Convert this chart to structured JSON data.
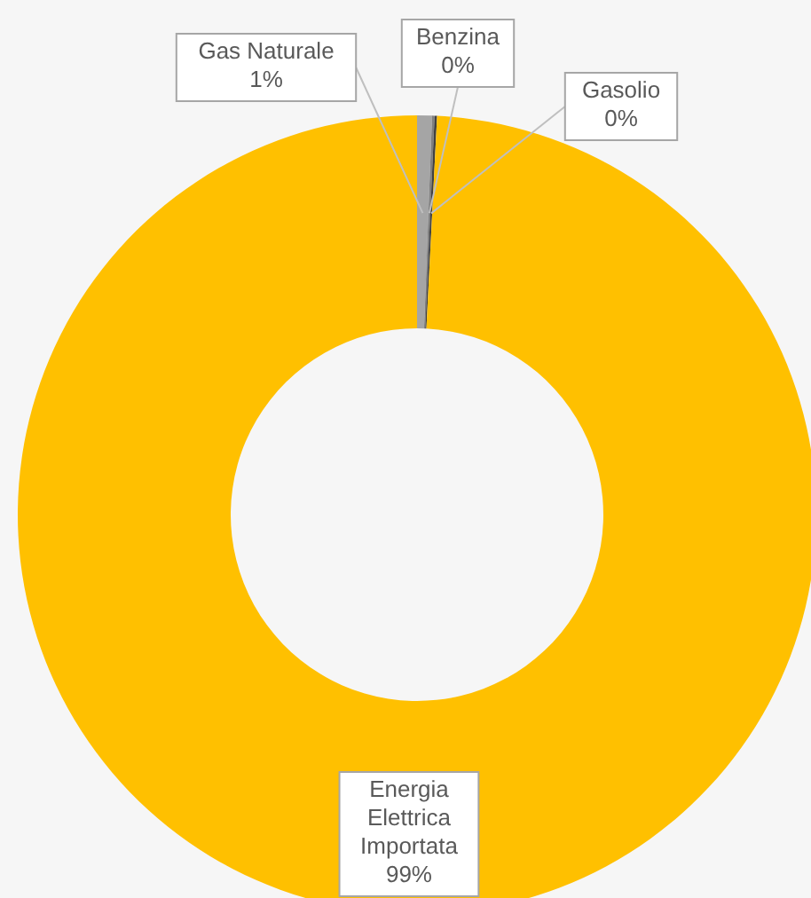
{
  "chart_data": {
    "type": "donut",
    "categories": [
      "Gas Naturale",
      "Benzina",
      "Gasolio",
      "Energia Elettrica Importata"
    ],
    "values": [
      0.6,
      0.1,
      0.1,
      99.2
    ],
    "value_labels": [
      "1%",
      "0%",
      "0%",
      "99%"
    ],
    "colors": [
      "#a5a5a5",
      "#7f7f7f",
      "#404040",
      "#ffc000"
    ]
  }
}
